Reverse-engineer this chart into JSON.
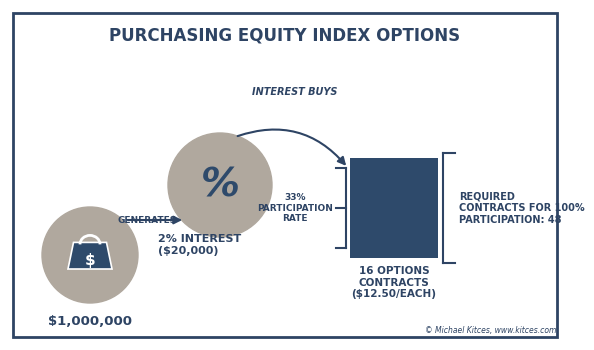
{
  "title": "PURCHASING EQUITY INDEX OPTIONS",
  "bg_color": "#ffffff",
  "border_color": "#2e4464",
  "circle_color": "#b0a89e",
  "box_color": "#2e4a6b",
  "dark_blue": "#2e4a6b",
  "arrow_color": "#2e4464",
  "text_color": "#2e4464",
  "bucket_label": "$1,000,000",
  "generates_label": "GENERATES",
  "interest_label": "2% INTEREST\n($20,000)",
  "interest_buys_label": "INTEREST BUYS",
  "participation_label": "33%\nPARTICIPATION\nRATE",
  "contracts_label": "16 OPTIONS\nCONTRACTS\n($12.50/EACH)",
  "required_label": "REQUIRED\nCONTRACTS FOR 100%\nPARTICIPATION: 48",
  "footer": "© Michael Kitces, www.kitces.com",
  "percent_symbol": "%",
  "dollar_symbol": "$"
}
